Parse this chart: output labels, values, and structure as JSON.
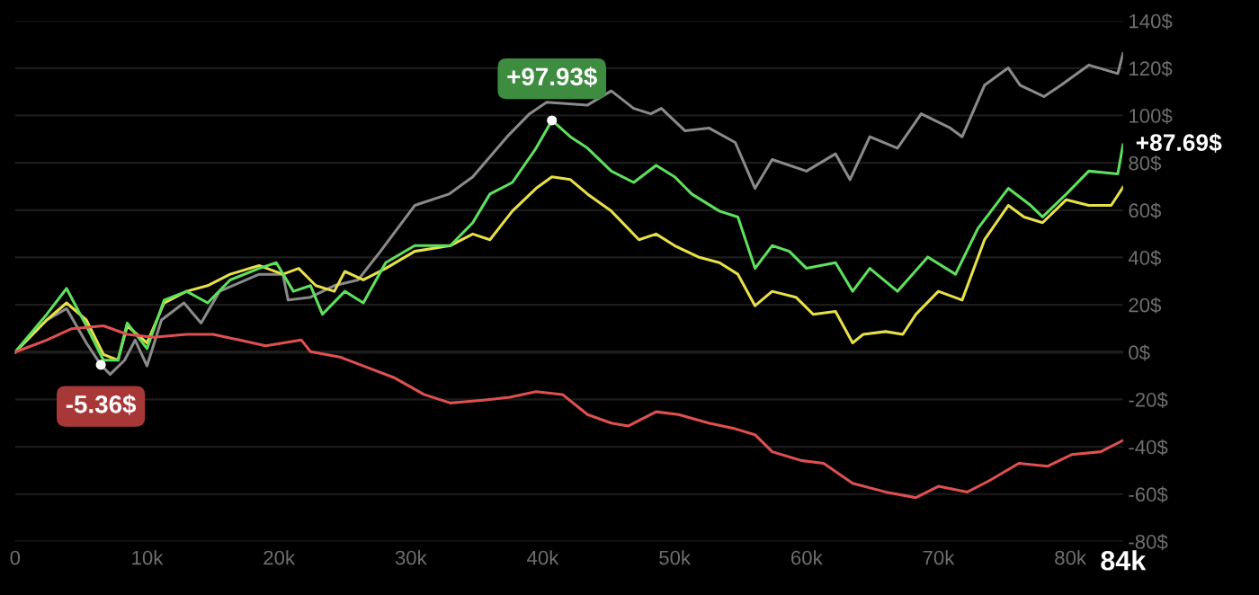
{
  "chart_data": {
    "type": "line",
    "xlim": [
      0,
      84000
    ],
    "ylim": [
      -80,
      140
    ],
    "xticks": [
      0,
      {
        "value": 10000,
        "label": "10k"
      },
      {
        "value": 20000,
        "label": "20k"
      },
      {
        "value": 30000,
        "label": "30k"
      },
      {
        "value": 40000,
        "label": "40k"
      },
      {
        "value": 50000,
        "label": "50k"
      },
      {
        "value": 60000,
        "label": "60k"
      },
      {
        "value": 70000,
        "label": "70k"
      },
      {
        "value": 80000,
        "label": "80k"
      },
      {
        "value": 84000,
        "label": "84k"
      }
    ],
    "yticks": [
      {
        "value": -80,
        "label": "-80$"
      },
      {
        "value": -60,
        "label": "-60$"
      },
      {
        "value": -40,
        "label": "-40$"
      },
      {
        "value": -20,
        "label": "-20$"
      },
      {
        "value": 0,
        "label": "0$"
      },
      {
        "value": 20,
        "label": "20$"
      },
      {
        "value": 40,
        "label": "40$"
      },
      {
        "value": 60,
        "label": "60$"
      },
      {
        "value": 80,
        "label": "80$"
      },
      {
        "value": 100,
        "label": "100$"
      },
      {
        "value": 120,
        "label": "120$"
      },
      {
        "value": 140,
        "label": "140$"
      }
    ],
    "grid": "y",
    "ref_lines": [
      {
        "axis": "y",
        "value": 0,
        "color": "#3c3c3c"
      }
    ],
    "series": [
      {
        "color": "#8a8a8a",
        "x": [
          0,
          2400,
          3900,
          5400,
          6500,
          7200,
          8300,
          9100,
          10000,
          11100,
          12800,
          14100,
          15500,
          18500,
          20300,
          20700,
          22400,
          24200,
          26000,
          27700,
          30300,
          32900,
          34700,
          37300,
          39000,
          40300,
          43400,
          45200,
          46900,
          48200,
          49000,
          50800,
          52600,
          54600,
          56100,
          57400,
          60000,
          62200,
          63300,
          64800,
          66900,
          68700,
          70900,
          71800,
          73500,
          75300,
          76200,
          78000,
          79300,
          81400,
          83600,
          84000
        ],
        "values": [
          0,
          13.6,
          18.4,
          3.9,
          -5.36,
          -9.4,
          -3.4,
          5.1,
          -5.8,
          13.6,
          20.8,
          12.3,
          25.7,
          32.9,
          32.9,
          22,
          23.2,
          28.1,
          30.5,
          42.6,
          62,
          66.8,
          74.1,
          91,
          100.7,
          105.6,
          104.4,
          110.4,
          103,
          100.7,
          103,
          93.5,
          94.7,
          88.6,
          69.2,
          81.4,
          76.5,
          83.8,
          72.9,
          91,
          86.2,
          100.7,
          94.7,
          91,
          112.8,
          120.1,
          112.8,
          108,
          112.8,
          121.3,
          117.7,
          126.2
        ]
      },
      {
        "color": "#e8e04a",
        "x": [
          0,
          2400,
          3900,
          5400,
          6700,
          7800,
          8500,
          10000,
          11300,
          13000,
          14600,
          16300,
          18500,
          20300,
          21500,
          22800,
          24200,
          25000,
          26400,
          28100,
          30300,
          33000,
          34700,
          36000,
          37700,
          39500,
          40700,
          42100,
          43400,
          45200,
          47300,
          48600,
          50000,
          51800,
          53400,
          54800,
          56100,
          57400,
          59200,
          60500,
          62200,
          63500,
          64300,
          66000,
          67300,
          68300,
          70000,
          71800,
          73500,
          75300,
          76500,
          77900,
          79700,
          81400,
          83100,
          84000
        ],
        "values": [
          0,
          13.6,
          20.8,
          13.6,
          -1,
          -3.4,
          11.1,
          3.9,
          20.8,
          25.7,
          28.1,
          32.9,
          36.6,
          32.9,
          35.4,
          28.1,
          25.7,
          34.1,
          30.5,
          35.4,
          42.6,
          45,
          49.9,
          47.5,
          59.6,
          69.2,
          74.1,
          72.9,
          66.8,
          59.6,
          47.5,
          49.9,
          45,
          40.2,
          37.8,
          32.9,
          19.6,
          25.7,
          23.2,
          16,
          17.2,
          3.9,
          7.5,
          8.7,
          7.5,
          16,
          25.7,
          22,
          47.5,
          62,
          57.1,
          54.7,
          64.4,
          62,
          62,
          69.7
        ]
      },
      {
        "color": "#5ee05e",
        "x": [
          0,
          2400,
          3900,
          5400,
          6700,
          7800,
          8500,
          10000,
          11300,
          13000,
          14600,
          16300,
          18500,
          19800,
          21100,
          22400,
          23300,
          25000,
          26400,
          28100,
          30300,
          33000,
          34700,
          36000,
          37700,
          39500,
          40700,
          42100,
          43400,
          45200,
          46900,
          48600,
          50000,
          51300,
          53400,
          54800,
          56100,
          57400,
          58700,
          60000,
          62200,
          63500,
          64800,
          66900,
          69200,
          71300,
          73000,
          75300,
          77000,
          77900,
          79700,
          81400,
          83600,
          84000
        ],
        "values": [
          0,
          16,
          26.9,
          11.1,
          -3.4,
          -3.4,
          12.3,
          1.5,
          22,
          25.7,
          20.8,
          30.5,
          35.4,
          37.8,
          25.7,
          28.1,
          16,
          25.7,
          20.8,
          37.8,
          45,
          45,
          54.7,
          66.8,
          71.7,
          86.2,
          97.93,
          91,
          86.2,
          76.5,
          71.7,
          78.9,
          74.1,
          66.8,
          59.6,
          57.1,
          35.4,
          45,
          42.6,
          35.4,
          37.8,
          25.7,
          35.4,
          25.7,
          40.2,
          32.9,
          52.3,
          69.2,
          62,
          57.1,
          66.8,
          76.5,
          75.3,
          87.69
        ]
      },
      {
        "color": "#e05050",
        "x": [
          0,
          2400,
          4300,
          6700,
          8500,
          10500,
          13000,
          15000,
          17000,
          19000,
          21700,
          22400,
          24700,
          26400,
          28700,
          31000,
          33000,
          35500,
          37500,
          39500,
          41500,
          43400,
          45200,
          46500,
          48600,
          50300,
          52600,
          54600,
          56100,
          57400,
          59600,
          61300,
          63500,
          66000,
          68300,
          70000,
          72200,
          73900,
          76100,
          78300,
          80100,
          82300,
          84000
        ],
        "values": [
          0,
          5.1,
          9.9,
          11.1,
          7.5,
          6.3,
          7.5,
          7.5,
          5.1,
          2.7,
          5.1,
          0.2,
          -2.2,
          -5.8,
          -10.7,
          -17.9,
          -21.5,
          -20.3,
          -19.1,
          -16.7,
          -17.9,
          -26.4,
          -30,
          -31.2,
          -25.2,
          -26.4,
          -30,
          -32.4,
          -34.9,
          -42.1,
          -45.8,
          -47,
          -55.4,
          -59.1,
          -61.5,
          -56.7,
          -59.1,
          -54.2,
          -47,
          -48.2,
          -43.3,
          -42.1,
          -37.3
        ]
      }
    ],
    "annotations": [
      {
        "text": "+97.93$",
        "x": 40700,
        "y": 97.93
      },
      {
        "text": "-5.36$",
        "x": 6500,
        "y": -5.36
      },
      {
        "text": "+87.69$",
        "x": 84000,
        "y": 87.69
      }
    ]
  }
}
